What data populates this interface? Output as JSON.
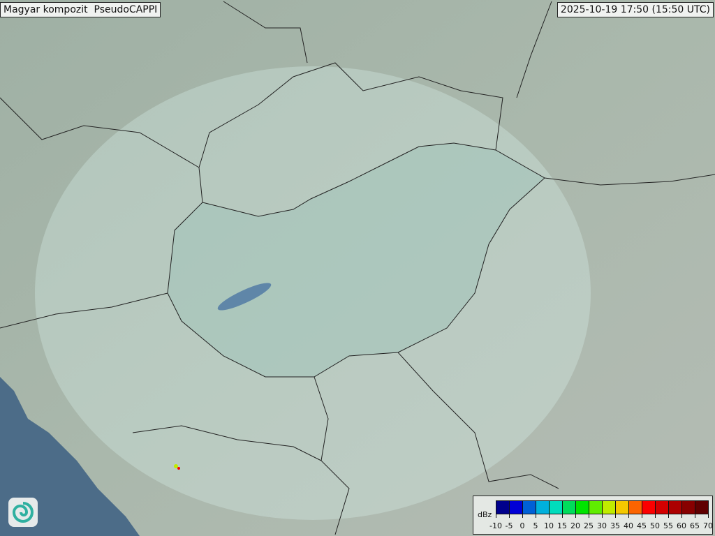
{
  "header": {
    "title": "Magyar kompozit  PseudoCAPPI",
    "timestamp": "2025-10-19 17:50 (15:50 UTC)"
  },
  "legend": {
    "unit": "dBz",
    "ticks": [
      "-10",
      "-5",
      "0",
      "5",
      "10",
      "15",
      "20",
      "25",
      "30",
      "35",
      "40",
      "45",
      "50",
      "55",
      "60",
      "65",
      "70"
    ],
    "colors": [
      "#00008c",
      "#0000d6",
      "#0060d6",
      "#00b0dc",
      "#00dcbc",
      "#00dc5c",
      "#00e400",
      "#60ec00",
      "#c0ec00",
      "#f4c800",
      "#fc6400",
      "#fc0000",
      "#d40000",
      "#ac0000",
      "#880000",
      "#600000"
    ]
  },
  "map": {
    "land_color": "#a8b8a8",
    "sea_color": "#4c6c88",
    "coverage_color": "#d8eee8"
  },
  "logo": {
    "icon": "omsz-swirl-logo"
  }
}
